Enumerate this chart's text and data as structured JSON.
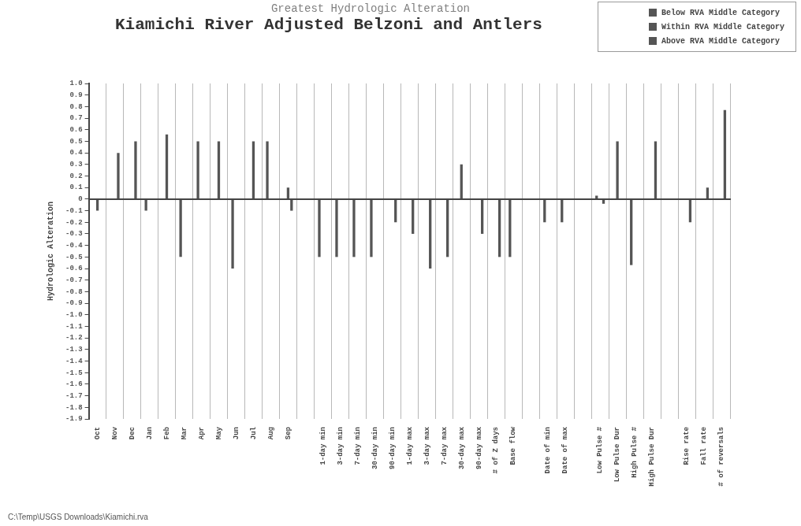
{
  "chart_data": {
    "type": "bar",
    "title": "Kiamichi River Adjusted Belzoni and Antlers",
    "subtitle": "Greatest Hydrologic Alteration",
    "ylabel": "Hydrologic Alteration",
    "categories": [
      "Oct",
      "Nov",
      "Dec",
      "Jan",
      "Feb",
      "Mar",
      "Apr",
      "May",
      "Jun",
      "Jul",
      "Aug",
      "Sep",
      null,
      "1-day min",
      "3-day min",
      "7-day min",
      "30-day min",
      "90-day min",
      "1-day max",
      "3-day max",
      "7-day max",
      "30-day max",
      "90-day max",
      "# of Z days",
      "Base flow",
      null,
      "Date of min",
      "Date of max",
      null,
      "Low Pulse #",
      "Low Pulse Dur",
      "High Pulse #",
      "High Pulse Dur",
      null,
      "Rise rate",
      "Fall rate",
      "# of reversals"
    ],
    "series": [
      {
        "name": "Below RVA Middle Category",
        "color": "#555555",
        "values": [
          null,
          null,
          null,
          -0.1,
          null,
          -0.5,
          0.5,
          null,
          -0.6,
          null,
          0.5,
          null,
          null,
          -0.5,
          -0.5,
          -0.5,
          -0.5,
          null,
          null,
          null,
          null,
          null,
          null,
          null,
          -0.5,
          null,
          -0.2,
          -0.2,
          null,
          0.03,
          null,
          -0.57,
          null,
          null,
          null,
          null,
          null
        ]
      },
      {
        "name": "Within RVA Middle Category",
        "color": "#555555",
        "values": [
          -0.1,
          null,
          null,
          null,
          0.56,
          null,
          null,
          0.5,
          null,
          0.5,
          null,
          0.1,
          null,
          null,
          null,
          null,
          null,
          null,
          null,
          null,
          null,
          0.3,
          null,
          null,
          null,
          null,
          null,
          null,
          null,
          null,
          0.5,
          null,
          null,
          null,
          null,
          null,
          null
        ]
      },
      {
        "name": "Above RVA Middle Category",
        "color": "#555555",
        "values": [
          null,
          0.4,
          0.5,
          null,
          null,
          null,
          null,
          null,
          null,
          null,
          null,
          -0.1,
          null,
          null,
          null,
          null,
          null,
          -0.2,
          -0.3,
          -0.6,
          -0.5,
          null,
          -0.3,
          -0.5,
          null,
          null,
          null,
          null,
          null,
          -0.04,
          null,
          null,
          0.5,
          null,
          -0.2,
          0.1,
          0.77
        ]
      }
    ],
    "ylim": [
      -1.9,
      1.0
    ],
    "yticks": [
      {
        "value": 1,
        "label": "1.0"
      },
      0.9,
      0.8,
      0.7,
      0.6,
      0.5,
      0.4,
      0.3,
      0.2,
      0.1,
      0,
      -0.1,
      -0.2,
      -0.3,
      -0.4,
      -0.5,
      -0.6,
      -0.7,
      -0.8,
      -0.9,
      {
        "value": -1,
        "label": "-1.0"
      },
      -1.1,
      -1.2,
      -1.3,
      -1.4,
      -1.5,
      -1.6,
      -1.7,
      -1.8,
      -1.9
    ],
    "grid": "x",
    "legend": "top right",
    "annotations": [
      "C:\\Temp\\USGS Downloads\\Kiamichi.rva"
    ]
  }
}
